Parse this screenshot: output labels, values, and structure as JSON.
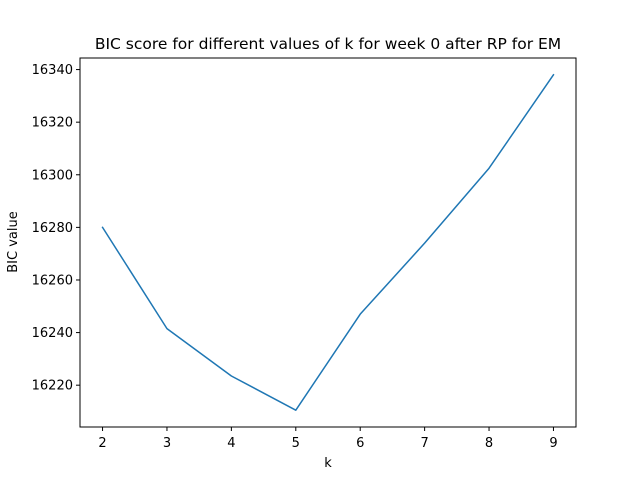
{
  "chart_data": {
    "type": "line",
    "title": "BIC score for different values of k for week 0 after RP for EM",
    "xlabel": "k",
    "ylabel": "BIC value",
    "x": [
      2,
      3,
      4,
      5,
      6,
      7,
      8,
      9
    ],
    "series": [
      {
        "values": [
          16280,
          16241.5,
          16223.5,
          16210.5,
          16247,
          16274,
          16302.5,
          16338
        ],
        "color": "#1f77b4"
      }
    ],
    "xticks": [
      2,
      3,
      4,
      5,
      6,
      7,
      8,
      9
    ],
    "yticks": [
      16220,
      16240,
      16260,
      16280,
      16300,
      16320,
      16340
    ],
    "xlim": [
      1.65,
      9.35
    ],
    "ylim": [
      16204.1,
      16344.4
    ],
    "grid": false
  }
}
